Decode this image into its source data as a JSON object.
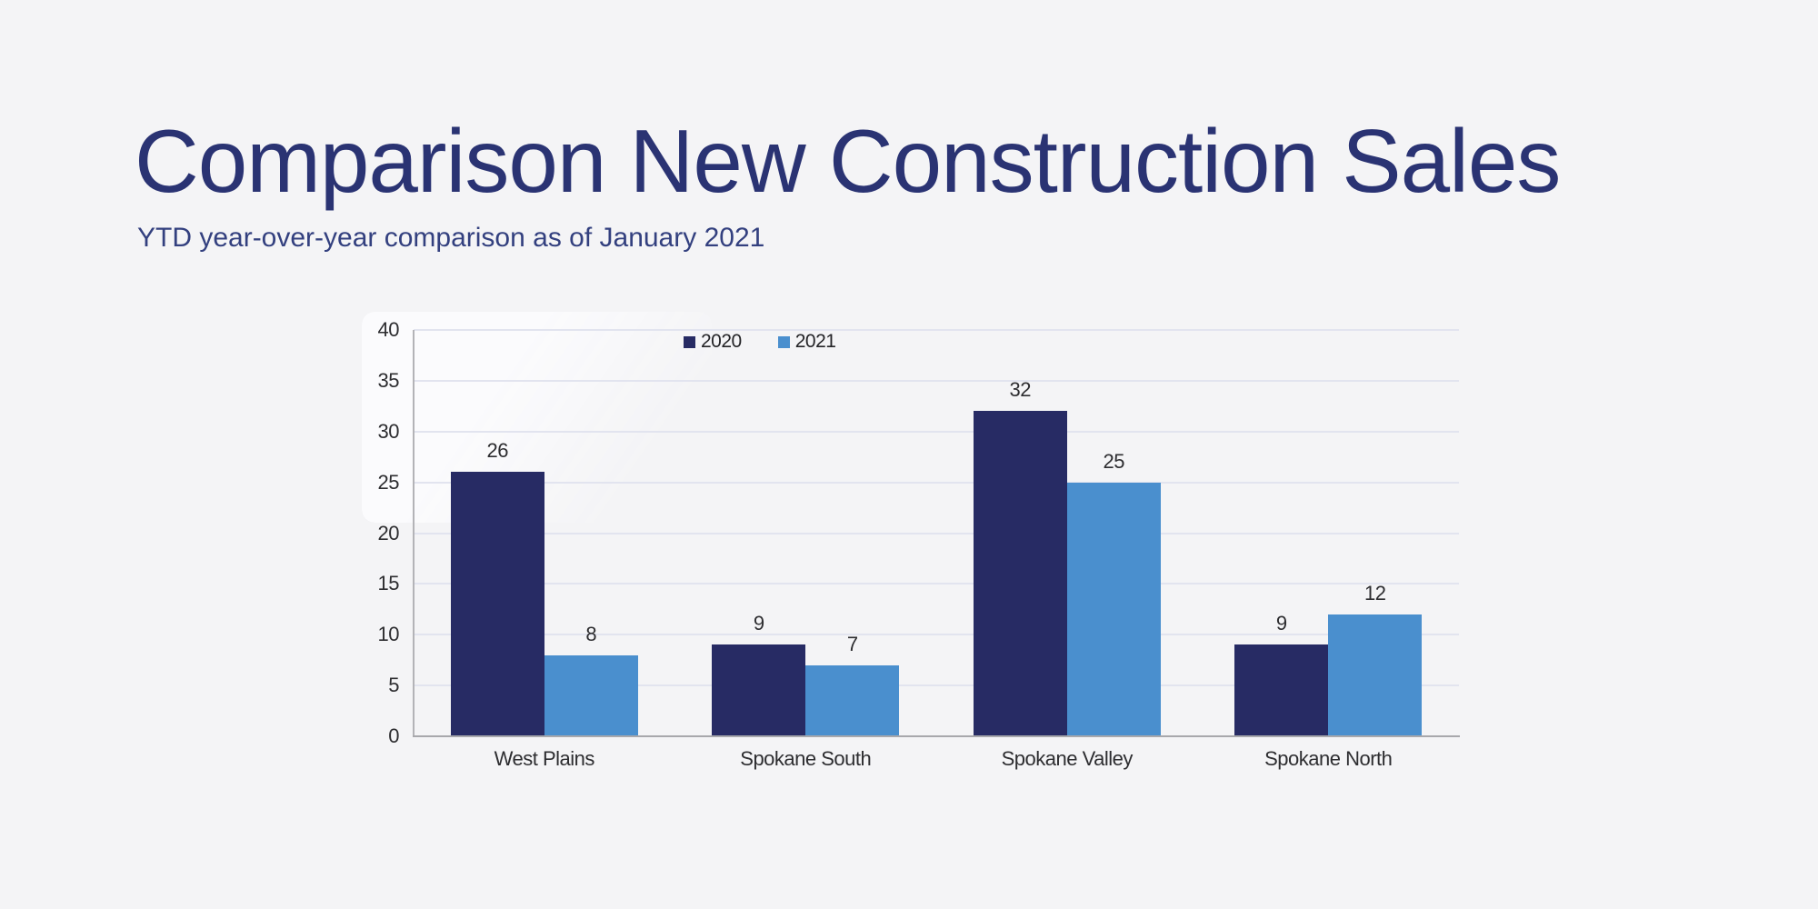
{
  "header": {
    "title": "Comparison New Construction Sales",
    "subtitle": "YTD year-over-year comparison as of January 2021"
  },
  "colors": {
    "page_background": "#f4f4f6",
    "title_text": "#2a3373",
    "subtitle_text": "#33407f",
    "gridline": "#e2e4ef",
    "axis_line": "#a8a8ac",
    "chart_text": "#2d2d30"
  },
  "chart_data": {
    "type": "bar",
    "title": "",
    "xlabel": "",
    "ylabel": "",
    "categories": [
      "West Plains",
      "Spokane South",
      "Spokane Valley",
      "Spokane North"
    ],
    "series": [
      {
        "name": "2020",
        "color": "#272b64",
        "values": [
          26,
          9,
          32,
          9
        ]
      },
      {
        "name": "2021",
        "color": "#4a8fce",
        "values": [
          8,
          7,
          25,
          12
        ]
      }
    ],
    "ylim": [
      0,
      40
    ],
    "yticks": [
      0,
      5,
      10,
      15,
      20,
      25,
      30,
      35,
      40
    ],
    "grid": true,
    "data_labels": true,
    "legend_position": "top-center"
  }
}
